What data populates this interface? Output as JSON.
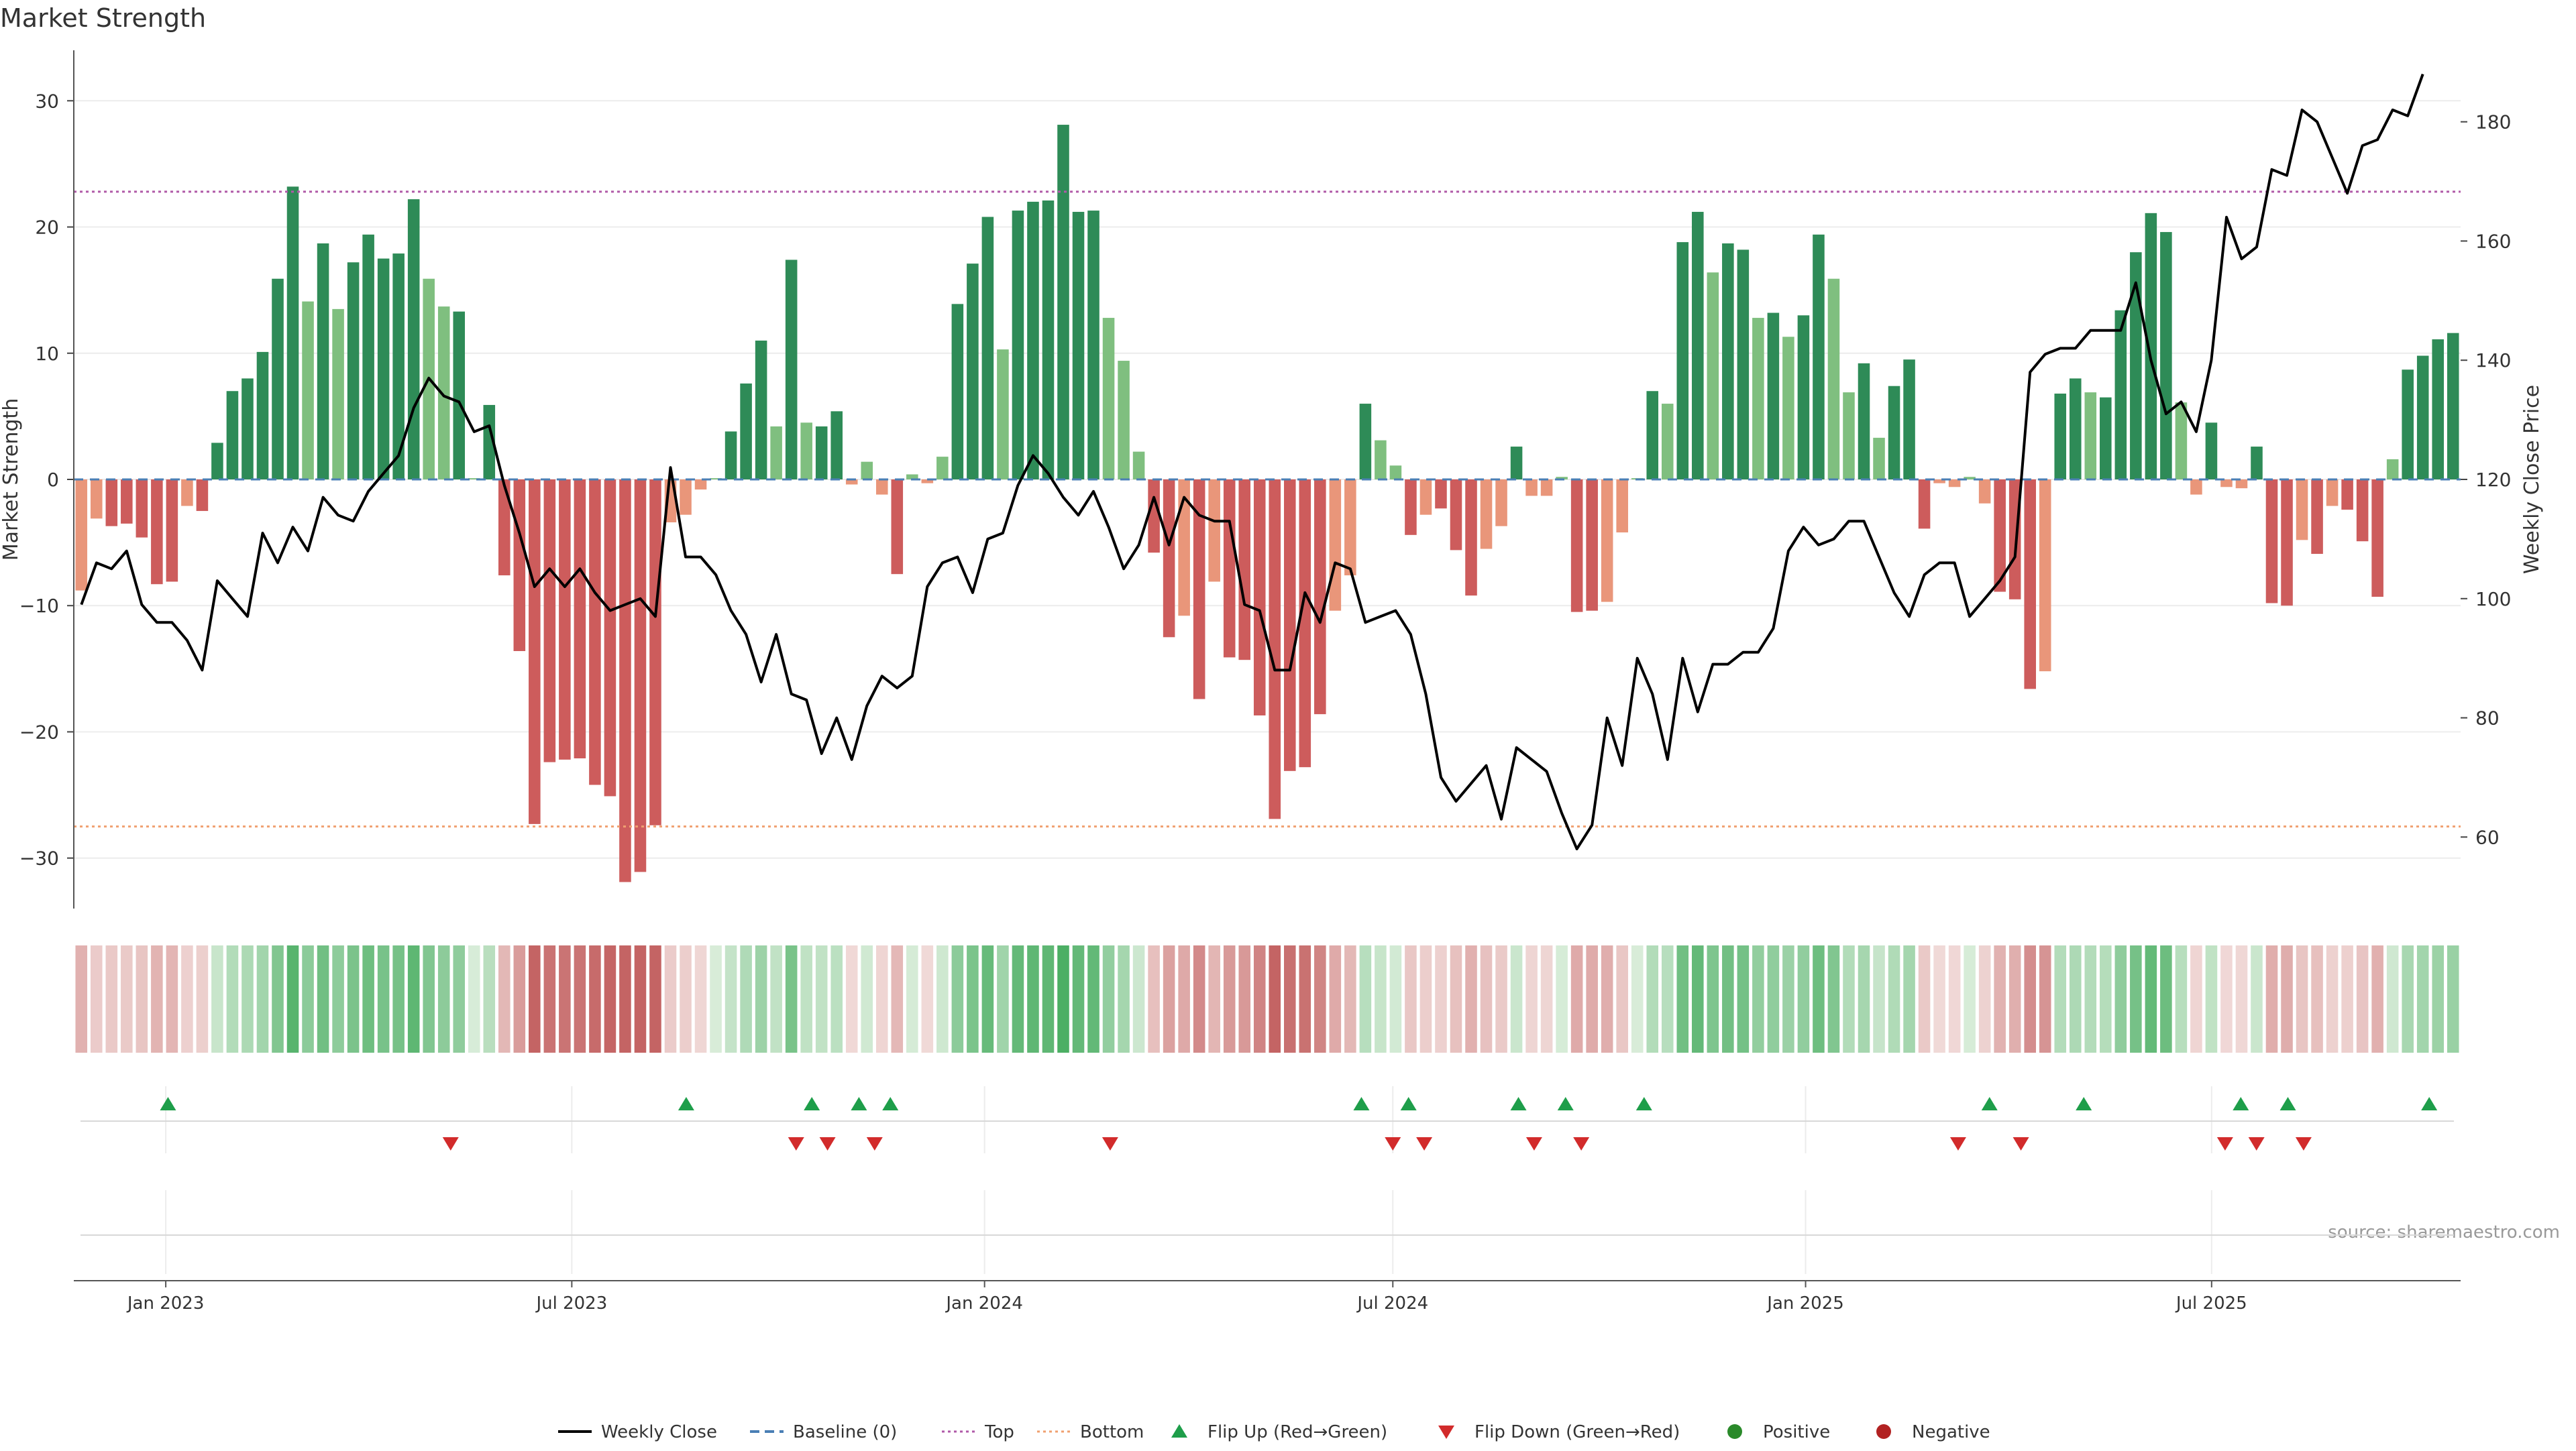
{
  "chart_data": {
    "type": "bar",
    "title": "Market Strength",
    "ylabel_left": "Market Strength",
    "ylabel_right": "Weekly Close Price",
    "source": "source: sharemaestro.com",
    "ylim_left": [
      -34,
      34
    ],
    "ylim_right": [
      48,
      192
    ],
    "yticks_left": [
      30,
      20,
      10,
      0,
      -10,
      -20,
      -30
    ],
    "yticks_right": [
      180,
      160,
      140,
      120,
      100,
      80,
      60
    ],
    "x_start": "2022-11-21",
    "x_end": "2025-10-20",
    "xticks": [
      {
        "label": "Jan 2023",
        "date": "2023-01-01"
      },
      {
        "label": "Jul 2023",
        "date": "2023-07-01"
      },
      {
        "label": "Jan 2024",
        "date": "2024-01-01"
      },
      {
        "label": "Jul 2024",
        "date": "2024-07-01"
      },
      {
        "label": "Jan 2025",
        "date": "2025-01-01"
      },
      {
        "label": "Jul 2025",
        "date": "2025-07-01"
      }
    ],
    "top_level": 22.8,
    "bottom_level": -27.5,
    "colors": {
      "strong_green": "#2e8b57",
      "light_green": "#7fbf7f",
      "strong_red": "#cd5c5c",
      "light_red": "#e9967a",
      "price_line": "#000000",
      "top_line": "#b05aa8",
      "bottom_line": "#f0a070",
      "baseline": "#4a7fb5",
      "flip_up": "#1e9e4a",
      "flip_down": "#d22b2b",
      "positive": "#2a8a2a",
      "negative": "#b22222"
    },
    "series": [
      {
        "name": "Market Strength",
        "values": [
          -8.8,
          -3.1,
          -3.7,
          -3.5,
          -4.6,
          -8.3,
          -8.1,
          -2.1,
          -2.5,
          2.9,
          7.0,
          8.0,
          10.1,
          15.9,
          23.2,
          14.1,
          18.7,
          13.5,
          17.2,
          19.4,
          17.5,
          17.9,
          22.2,
          15.9,
          13.7,
          13.3,
          0.1,
          5.9,
          -7.6,
          -13.6,
          -27.3,
          -22.4,
          -22.2,
          -22.1,
          -24.2,
          -25.1,
          -31.9,
          -31.1,
          -27.4,
          -3.4,
          -2.8,
          -0.8,
          0.1,
          3.8,
          7.6,
          11.0,
          4.2,
          17.4,
          4.5,
          4.2,
          5.4,
          -0.4,
          1.4,
          -1.2,
          -7.5,
          0.4,
          -0.3,
          1.8,
          13.9,
          17.1,
          20.8,
          10.3,
          21.3,
          22.0,
          22.1,
          28.1,
          21.2,
          21.3,
          12.8,
          9.4,
          2.2,
          -5.8,
          -12.5,
          -10.8,
          -17.4,
          -8.1,
          -14.1,
          -14.3,
          -18.7,
          -26.9,
          -23.1,
          -22.8,
          -18.6,
          -10.4,
          -7.6,
          6.0,
          3.1,
          1.1,
          -4.4,
          -2.8,
          -2.3,
          -5.6,
          -9.2,
          -5.5,
          -3.7,
          2.6,
          -1.3,
          -1.3,
          0.2,
          -10.5,
          -10.4,
          -9.7,
          -4.2,
          0.1,
          7.0,
          6.0,
          18.8,
          21.2,
          16.4,
          18.7,
          18.2,
          12.8,
          13.2,
          11.3,
          13.0,
          19.4,
          15.9,
          6.9,
          9.2,
          3.3,
          7.4,
          9.5,
          -3.9,
          -0.3,
          -0.6,
          0.2,
          -1.9,
          -8.9,
          -9.5,
          -16.6,
          -15.2,
          6.8,
          8.0,
          6.9,
          6.5,
          13.4,
          18.0,
          21.1,
          19.6,
          6.1,
          -1.2,
          4.5,
          -0.6,
          -0.7,
          2.6,
          -9.8,
          -10.0,
          -4.8,
          -5.9,
          -2.1,
          -2.4,
          -4.9,
          -9.3,
          1.6,
          8.7,
          9.8,
          11.1,
          11.6
        ]
      },
      {
        "name": "Weekly Close",
        "values": [
          99,
          106,
          105,
          108,
          99,
          96,
          96,
          93,
          88,
          103,
          100,
          97,
          111,
          106,
          112,
          108,
          117,
          114,
          113,
          118,
          121,
          124,
          132,
          137,
          134,
          133,
          128,
          129,
          119,
          111,
          102,
          105,
          102,
          105,
          101,
          98,
          99,
          100,
          97,
          122,
          107,
          107,
          104,
          98,
          94,
          86,
          94,
          84,
          83,
          74,
          80,
          73,
          82,
          87,
          85,
          87,
          102,
          106,
          107,
          101,
          110,
          111,
          119,
          124,
          121,
          117,
          114,
          118,
          112,
          105,
          109,
          117,
          109,
          117,
          114,
          113,
          113,
          99,
          98,
          88,
          88,
          101,
          96,
          106,
          105,
          96,
          97,
          98,
          94,
          84,
          70,
          66,
          69,
          72,
          63,
          75,
          73,
          71,
          64,
          58,
          62,
          80,
          72,
          90,
          84,
          73,
          90,
          81,
          89,
          89,
          91,
          91,
          95,
          108,
          112,
          109,
          110,
          113,
          113,
          107,
          101,
          97,
          104,
          106,
          106,
          97,
          100,
          103,
          107,
          138,
          141,
          142,
          142,
          145,
          145,
          145,
          153,
          140,
          131,
          133,
          128,
          140,
          164,
          157,
          159,
          172,
          171,
          182,
          180,
          174,
          168,
          176,
          177,
          182,
          181,
          188
        ]
      }
    ],
    "trend_strip_values": [
      -9.5,
      -4.0,
      -4.5,
      -4.3,
      -5.4,
      -9.0,
      -8.7,
      -2.9,
      -3.3,
      3.6,
      7.5,
      8.7,
      10.5,
      16.4,
      23.8,
      14.6,
      19.3,
      14.0,
      17.6,
      19.9,
      18.0,
      18.5,
      22.7,
      16.4,
      14.3,
      13.9,
      0.9,
      6.4,
      -8.2,
      -14.0,
      -27.6,
      -22.7,
      -22.5,
      -22.5,
      -24.5,
      -25.5,
      -32.0,
      -31.3,
      -27.7,
      -4.0,
      -3.5,
      -1.7,
      0.8,
      4.4,
      8.1,
      11.4,
      4.9,
      17.9,
      5.1,
      4.9,
      5.9,
      -1.2,
      2.1,
      -1.9,
      -8.0,
      1.2,
      -1.1,
      2.5,
      14.4,
      17.5,
      21.2,
      10.9,
      21.7,
      22.5,
      22.6,
      28.6,
      21.7,
      21.8,
      13.3,
      9.9,
      2.8,
      -6.4,
      -13.0,
      -11.3,
      -17.8,
      -8.6,
      -14.5,
      -14.7,
      -19.1,
      -27.2,
      -23.5,
      -23.1,
      -19.0,
      -11.0,
      -8.2,
      6.6,
      3.8,
      1.8,
      -5.0,
      -3.5,
      -2.9,
      -6.2,
      -9.7,
      -6.1,
      -4.3,
      3.3,
      -2.0,
      -2.0,
      1.0,
      -11.0,
      -10.9,
      -10.2,
      -4.9,
      0.8,
      7.6,
      6.6,
      19.3,
      21.7,
      16.9,
      19.2,
      18.7,
      13.4,
      13.7,
      11.8,
      13.5,
      19.9,
      16.4,
      7.5,
      9.8,
      4.0,
      8.0,
      10.0,
      -4.5,
      -1.1,
      -1.4,
      1.0,
      -2.6,
      -9.4,
      -10.0,
      -17.0,
      -15.7,
      7.4,
      8.5,
      7.4,
      7.1,
      13.9,
      18.5,
      21.6,
      20.1,
      6.7,
      -1.9,
      5.1,
      -1.4,
      -1.5,
      3.3,
      -10.3,
      -10.5,
      -5.4,
      -6.4,
      -2.8,
      -3.0,
      -5.5,
      -9.8,
      2.3,
      9.3,
      10.4,
      11.6,
      12.1
    ],
    "flip_up": [
      {
        "date": "2023-01-02"
      },
      {
        "date": "2023-08-21"
      },
      {
        "date": "2023-10-16"
      },
      {
        "date": "2023-11-06"
      },
      {
        "date": "2023-11-20"
      },
      {
        "date": "2024-06-17"
      },
      {
        "date": "2024-07-08"
      },
      {
        "date": "2024-08-26"
      },
      {
        "date": "2024-09-16"
      },
      {
        "date": "2024-10-21"
      },
      {
        "date": "2025-03-24"
      },
      {
        "date": "2025-05-05"
      },
      {
        "date": "2025-07-14"
      },
      {
        "date": "2025-08-04"
      },
      {
        "date": "2025-10-06"
      }
    ],
    "flip_down": [
      {
        "date": "2023-05-08"
      },
      {
        "date": "2023-10-09"
      },
      {
        "date": "2023-10-23"
      },
      {
        "date": "2023-11-13"
      },
      {
        "date": "2024-02-26"
      },
      {
        "date": "2024-07-01"
      },
      {
        "date": "2024-07-15"
      },
      {
        "date": "2024-09-02"
      },
      {
        "date": "2024-09-23"
      },
      {
        "date": "2025-03-10"
      },
      {
        "date": "2025-04-07"
      },
      {
        "date": "2025-07-07"
      },
      {
        "date": "2025-07-21"
      },
      {
        "date": "2025-08-11"
      }
    ],
    "legend": {
      "position": "bottom-center",
      "items": [
        {
          "key": "weekly_close",
          "label": "Weekly Close",
          "marker": "line"
        },
        {
          "key": "baseline",
          "label": "Baseline (0)",
          "marker": "dash"
        },
        {
          "key": "top",
          "label": "Top",
          "marker": "dotted"
        },
        {
          "key": "bottom",
          "label": "Bottom",
          "marker": "dotted"
        },
        {
          "key": "flip_up",
          "label": "Flip Up (Red→Green)",
          "marker": "triangle-up"
        },
        {
          "key": "flip_down",
          "label": "Flip Down (Green→Red)",
          "marker": "triangle-down"
        },
        {
          "key": "positive",
          "label": "Positive",
          "marker": "circle"
        },
        {
          "key": "negative",
          "label": "Negative",
          "marker": "circle"
        }
      ]
    }
  }
}
